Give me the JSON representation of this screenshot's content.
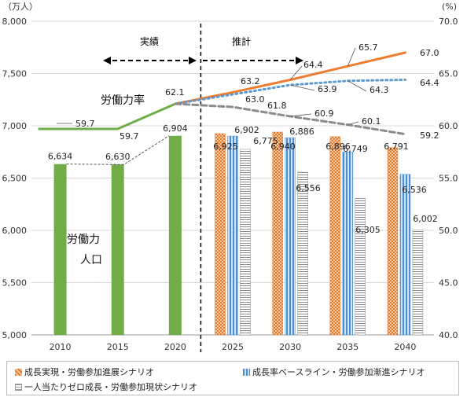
{
  "chart_data": {
    "type": "bar",
    "categories": [
      "2010",
      "2015",
      "2020",
      "2025",
      "2030",
      "2035",
      "2040"
    ],
    "left_axis": {
      "unit_label": "（万人）",
      "min": 5000,
      "max": 8000,
      "ticks": [
        "5,000",
        "5,500",
        "6,000",
        "6,500",
        "7,000",
        "7,500",
        "8,000"
      ]
    },
    "right_axis": {
      "unit_label": "(%)",
      "min": 40,
      "max": 70,
      "ticks": [
        "40.0",
        "45.0",
        "50.0",
        "55.0",
        "60.0",
        "65.0",
        "70.0"
      ]
    },
    "labels": {
      "actual": "実績",
      "projection": "推計",
      "labor_rate": "労働力率",
      "labor_pop_line1": "労働力",
      "labor_pop_line2": "人口"
    },
    "actual_bars": {
      "categories": [
        "2010",
        "2015",
        "2020"
      ],
      "values": [
        6634,
        6630,
        6904
      ],
      "value_labels": [
        "6,634",
        "6,630",
        "6,904"
      ],
      "color": "#70ad47"
    },
    "series": [
      {
        "name": "成長実現・労働参加進展シナリオ",
        "bar_values": [
          6925,
          6940,
          6896,
          6791
        ],
        "bar_labels": [
          "6,925",
          "6,940",
          "6,896",
          "6,791"
        ],
        "rate_values": [
          63.2,
          64.4,
          65.7,
          67.0
        ],
        "rate_labels": [
          "63.2",
          "64.4",
          "65.7",
          "67.0"
        ],
        "color": "#ed7d31"
      },
      {
        "name": "成長率ベースライン・労働参加漸進シナリオ",
        "bar_values": [
          6902,
          6886,
          6749,
          6536
        ],
        "bar_labels": [
          "6,902",
          "6,886",
          "6,749",
          "6,536"
        ],
        "rate_values": [
          63.0,
          63.9,
          64.3,
          64.4
        ],
        "rate_labels": [
          "63.0",
          "63.9",
          "64.3",
          "64.4"
        ],
        "color": "#5b9bd5"
      },
      {
        "name": "一人当たりゼロ成長・労働参加現状シナリオ",
        "bar_values": [
          6775,
          6556,
          6305,
          6002
        ],
        "bar_labels": [
          "6,775",
          "6,556",
          "6,305",
          "6,002"
        ],
        "rate_values": [
          61.8,
          60.9,
          60.1,
          59.2
        ],
        "rate_labels": [
          "61.8",
          "60.9",
          "60.1",
          "59.2"
        ],
        "color": "#8c8c8c"
      }
    ],
    "actual_rate": {
      "values": [
        59.7,
        59.7,
        62.1
      ],
      "labels": [
        "59.7",
        "59.7",
        "62.1"
      ],
      "color": "#70ad47"
    }
  }
}
